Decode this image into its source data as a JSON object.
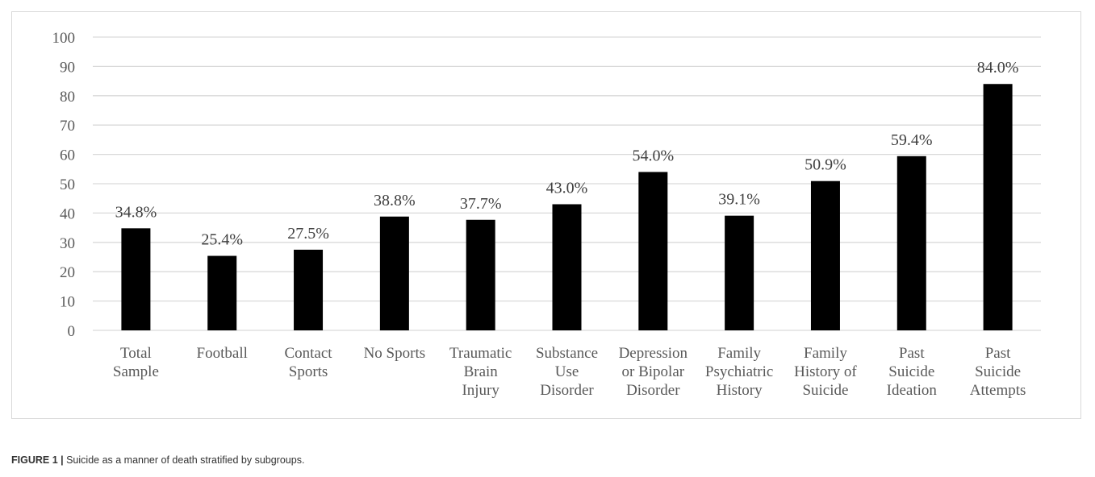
{
  "chart_data": {
    "type": "bar",
    "categories": [
      [
        "Total",
        "Sample"
      ],
      [
        "Football"
      ],
      [
        "Contact",
        "Sports"
      ],
      [
        "No Sports"
      ],
      [
        "Traumatic",
        "Brain",
        "Injury"
      ],
      [
        "Substance",
        "Use",
        "Disorder"
      ],
      [
        "Depression",
        "or Bipolar",
        "Disorder"
      ],
      [
        "Family",
        "Psychiatric",
        "History"
      ],
      [
        "Family",
        "History of",
        "Suicide"
      ],
      [
        "Past",
        "Suicide",
        "Ideation"
      ],
      [
        "Past",
        "Suicide",
        "Attempts"
      ]
    ],
    "values": [
      34.8,
      25.4,
      27.5,
      38.8,
      37.7,
      43.0,
      54.0,
      39.1,
      50.9,
      59.4,
      84.0
    ],
    "data_labels": [
      "34.8%",
      "25.4%",
      "27.5%",
      "38.8%",
      "37.7%",
      "43.0%",
      "54.0%",
      "39.1%",
      "50.9%",
      "59.4%",
      "84.0%"
    ],
    "y_ticks": [
      0,
      10,
      20,
      30,
      40,
      50,
      60,
      70,
      80,
      90,
      100
    ],
    "ylim": [
      0,
      100
    ],
    "grid": true,
    "bar_color": "#000000",
    "grid_color": "#d9d9d9"
  },
  "caption": {
    "label": "FIGURE 1 |",
    "text": " Suicide as a manner of death stratified by subgroups."
  }
}
